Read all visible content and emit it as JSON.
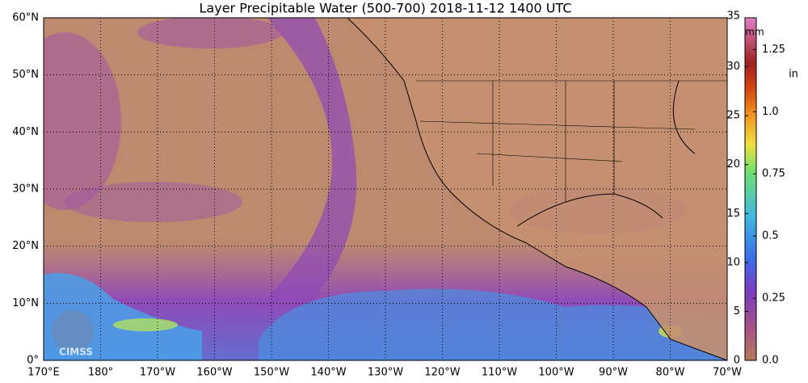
{
  "title": "Layer Precipitable Water (500-700)  2018-11-12 1400 UTC",
  "lat_labels": [
    "0°",
    "10°N",
    "20°N",
    "30°N",
    "40°N",
    "50°N",
    "60°N"
  ],
  "lon_labels": [
    "170°E",
    "180°",
    "170°W",
    "160°W",
    "150°W",
    "140°W",
    "130°W",
    "120°W",
    "110°W",
    "100°W",
    "90°W",
    "80°W",
    "70°W"
  ],
  "logo": "CIMSS",
  "colorbar": {
    "mm_unit": "mm",
    "in_unit": "in",
    "mm_lim": [
      0,
      35
    ],
    "mm_ticks": [
      0,
      5,
      10,
      15,
      20,
      25,
      30,
      35
    ],
    "in_ticks": [
      {
        "value": 0,
        "label": "0.0"
      },
      {
        "value": 0.25,
        "label": "0.25"
      },
      {
        "value": 0.5,
        "label": "0.5"
      },
      {
        "value": 0.75,
        "label": "0.75"
      },
      {
        "value": 1,
        "label": "1.0"
      },
      {
        "value": 1.25,
        "label": "1.25"
      }
    ]
  }
}
